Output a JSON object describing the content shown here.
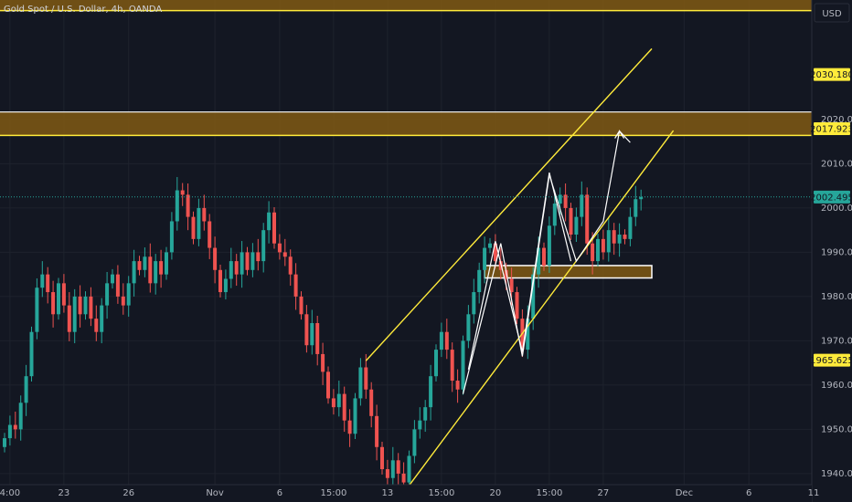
{
  "header": {
    "title": "Gold Spot / U.S. Dollar, 4h, OANDA",
    "currency_button": "USD"
  },
  "colors": {
    "background": "#131722",
    "grid": "#1e222d",
    "bull": "#26a69a",
    "bear": "#ef5350",
    "zone_fill": "#7a5514",
    "zone_border": "#ffeb3b",
    "channel": "#ffeb3b",
    "projection": "#ffffff",
    "current_price": "#26a69a"
  },
  "price_tags": [
    {
      "value": 2030.18,
      "label": "2030.180",
      "style": "yellow"
    },
    {
      "value": 2017.923,
      "label": "2017.923",
      "style": "yellow"
    },
    {
      "value": 2002.495,
      "label": "2002.495",
      "style": "green"
    },
    {
      "value": 1965.625,
      "label": "1965.625",
      "style": "yellow"
    }
  ],
  "chart_data": {
    "type": "candlestick",
    "title": "Gold Spot / U.S. Dollar, 4h, OANDA",
    "ylim": [
      1937.5,
      2047
    ],
    "y_ticks": [
      {
        "value": 2020,
        "label": "2020.000"
      },
      {
        "value": 2010,
        "label": "2010.000"
      },
      {
        "value": 2000,
        "label": "2000.000"
      },
      {
        "value": 1990,
        "label": "1990.000"
      },
      {
        "value": 1980,
        "label": "1980.000"
      },
      {
        "value": 1970,
        "label": "1970.000"
      },
      {
        "value": 1960,
        "label": "1960.000"
      },
      {
        "value": 1950,
        "label": "1950.000"
      },
      {
        "value": 1940,
        "label": "1940.000"
      }
    ],
    "x_ticks": [
      {
        "index": 1,
        "label": "4:00"
      },
      {
        "index": 11,
        "label": "23"
      },
      {
        "index": 23,
        "label": "26"
      },
      {
        "index": 39,
        "label": "Nov"
      },
      {
        "index": 51,
        "label": "6"
      },
      {
        "index": 61,
        "label": "15:00"
      },
      {
        "index": 71,
        "label": "13"
      },
      {
        "index": 81,
        "label": "15:00"
      },
      {
        "index": 91,
        "label": "20"
      },
      {
        "index": 101,
        "label": "15:00"
      },
      {
        "index": 111,
        "label": "27"
      },
      {
        "index": 126,
        "label": "Dec"
      },
      {
        "index": 138,
        "label": "6"
      },
      {
        "index": 150,
        "label": "11"
      }
    ],
    "closes": [
      1948,
      1951,
      1950,
      1956,
      1962,
      1972,
      1982,
      1985,
      1981,
      1976,
      1983,
      1978,
      1972,
      1980,
      1976,
      1980,
      1975,
      1972,
      1978,
      1983,
      1985,
      1980,
      1978,
      1983,
      1988,
      1986,
      1989,
      1983,
      1988,
      1985,
      1990,
      1997,
      2004,
      2003,
      1998,
      1993,
      2000,
      1997,
      1991,
      1986,
      1981,
      1984,
      1988,
      1985,
      1990,
      1986,
      1990,
      1988,
      1995,
      1999,
      1992,
      1990,
      1989,
      1985,
      1980,
      1976,
      1969,
      1974,
      1967,
      1963,
      1957,
      1955,
      1958,
      1952,
      1949,
      1957,
      1964,
      1959,
      1953,
      1946,
      1941,
      1939,
      1943,
      1940,
      1938,
      1944,
      1950,
      1952,
      1955,
      1962,
      1968,
      1972,
      1968,
      1961,
      1959,
      1970,
      1976,
      1981,
      1986,
      1991,
      1992,
      1988,
      1986,
      1984,
      1981,
      1975,
      1968,
      1975,
      1985,
      1991,
      1987,
      1996,
      2001,
      2003,
      2000,
      1994,
      1998,
      2003,
      1992,
      1988,
      1993,
      1990,
      1995,
      1992,
      1994,
      1993,
      1998,
      2002,
      2002.5
    ],
    "annotations": [
      {
        "type": "zone",
        "top": 2050,
        "bottom": 2044.6
      },
      {
        "type": "zone",
        "top": 2021.7,
        "bottom": 2016.4
      },
      {
        "type": "zone",
        "top": 1987,
        "bottom": 1984.2,
        "x_start": 89,
        "x_end": 120
      },
      {
        "type": "channel_line",
        "x1": 67,
        "y1": 1965.5,
        "x2": 120,
        "y2": 2036
      },
      {
        "type": "channel_line",
        "x1": 75,
        "y1": 1937.3,
        "x2": 124,
        "y2": 2017.5
      },
      {
        "type": "projection_path",
        "points": [
          [
            85,
            1958
          ],
          [
            92,
            1992
          ],
          [
            96,
            1966.5
          ],
          [
            101,
            2007.5
          ],
          [
            106,
            1988
          ],
          [
            111,
            1997
          ],
          [
            114,
            2017.4
          ],
          [
            116,
            2014.8
          ]
        ]
      },
      {
        "type": "projection_path",
        "points": [
          [
            86,
            1963.5
          ],
          [
            91,
            1992.5
          ],
          [
            96,
            1967.5
          ],
          [
            101,
            2008
          ],
          [
            105,
            1988
          ]
        ]
      }
    ]
  }
}
